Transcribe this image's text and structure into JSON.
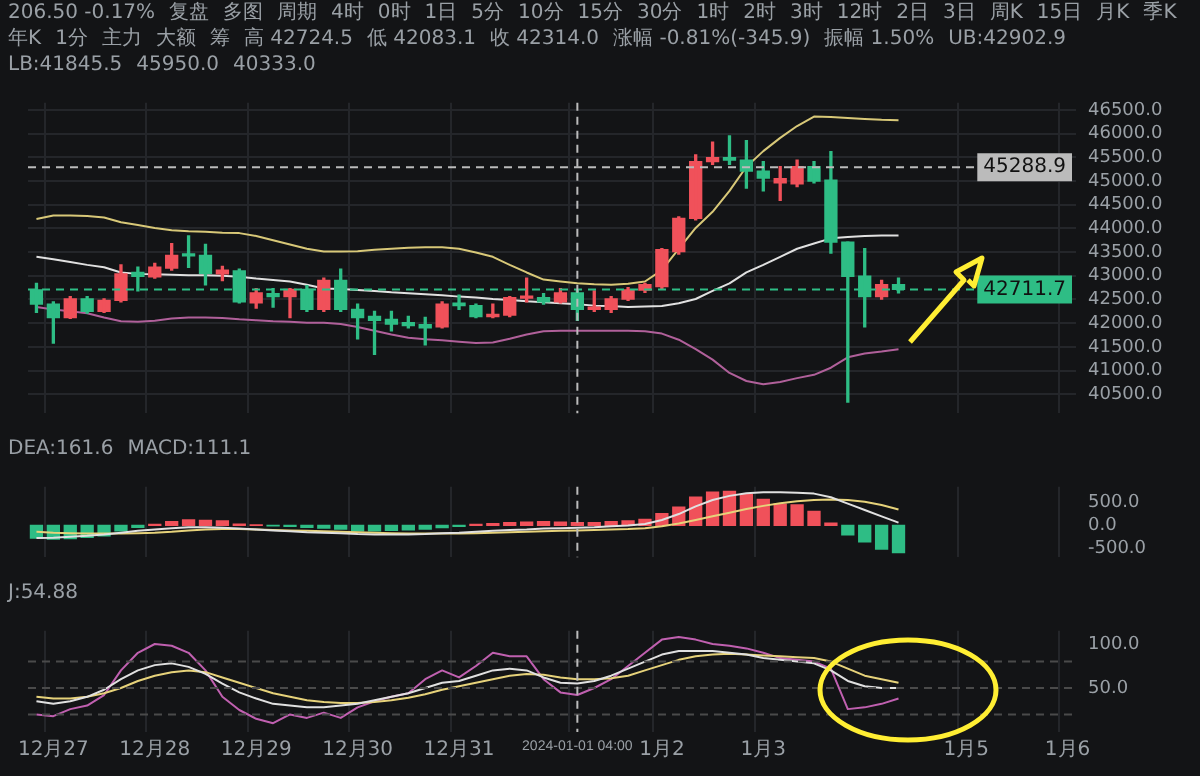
{
  "chart_data": [
    {
      "type": "candlestick",
      "categories": [
        null,
        null,
        null,
        null,
        null,
        null,
        null,
        null,
        null,
        null,
        null,
        null,
        null,
        null,
        null,
        null,
        null,
        null,
        null,
        null,
        null,
        null,
        null,
        null,
        null,
        null,
        null,
        null,
        null,
        null,
        null,
        null,
        null,
        null,
        null,
        null,
        null,
        null,
        null,
        null,
        null,
        null,
        null,
        null,
        null,
        null,
        null,
        null,
        null,
        null,
        null,
        null,
        null,
        null,
        null,
        null,
        null,
        null,
        null,
        null,
        null,
        null
      ],
      "ohlc": [
        [
          42700,
          42840,
          42230,
          42400
        ],
        [
          42400,
          42450,
          41580,
          42120
        ],
        [
          42120,
          42560,
          42100,
          42510
        ],
        [
          42510,
          42560,
          42210,
          42250
        ],
        [
          42250,
          42510,
          42230,
          42480
        ],
        [
          42480,
          43230,
          42450,
          43040
        ],
        [
          43070,
          43180,
          42680,
          42990
        ],
        [
          42980,
          43260,
          42950,
          43180
        ],
        [
          43160,
          43680,
          43120,
          43430
        ],
        [
          43450,
          43840,
          43180,
          43420
        ],
        [
          43430,
          43660,
          42810,
          43050
        ],
        [
          43040,
          43200,
          42900,
          43120
        ],
        [
          43100,
          43140,
          42430,
          42450
        ],
        [
          42430,
          42730,
          42320,
          42640
        ],
        [
          42620,
          42730,
          42340,
          42560
        ],
        [
          42560,
          42730,
          42120,
          42710
        ],
        [
          42710,
          42790,
          42250,
          42290
        ],
        [
          42290,
          42950,
          42250,
          42900
        ],
        [
          42900,
          43140,
          42250,
          42290
        ],
        [
          42290,
          42400,
          41670,
          42120
        ],
        [
          42140,
          42250,
          41340,
          42060
        ],
        [
          42080,
          42250,
          41840,
          41980
        ],
        [
          42010,
          42140,
          41900,
          41950
        ],
        [
          41970,
          42120,
          41540,
          41900
        ],
        [
          41920,
          42450,
          41900,
          42400
        ],
        [
          42420,
          42590,
          42290,
          42370
        ],
        [
          42370,
          42400,
          42120,
          42140
        ],
        [
          42140,
          42400,
          42120,
          42170
        ],
        [
          42170,
          42560,
          42140,
          42540
        ],
        [
          42530,
          42950,
          42450,
          42560
        ],
        [
          42540,
          42620,
          42400,
          42450
        ],
        [
          42450,
          42730,
          42430,
          42640
        ],
        [
          42640,
          42700,
          42060,
          42290
        ],
        [
          42290,
          42680,
          42250,
          42340
        ],
        [
          42290,
          42560,
          42230,
          42510
        ],
        [
          42510,
          42750,
          42480,
          42700
        ],
        [
          42700,
          42840,
          42650,
          42810
        ],
        [
          42770,
          43570,
          42730,
          43550
        ],
        [
          43510,
          44240,
          43460,
          44210
        ],
        [
          44210,
          45550,
          44180,
          45410
        ],
        [
          45410,
          45820,
          45350,
          45490
        ],
        [
          45490,
          45950,
          45350,
          45440
        ],
        [
          45440,
          45850,
          44850,
          45210
        ],
        [
          45210,
          45410,
          44790,
          45060
        ],
        [
          44960,
          45300,
          44590,
          45050
        ],
        [
          44940,
          45440,
          44880,
          45300
        ],
        [
          45300,
          45410,
          44960,
          45000
        ],
        [
          45020,
          45620,
          43480,
          43710
        ],
        [
          43710,
          43710,
          40333,
          42990
        ],
        [
          42990,
          43570,
          41920,
          42560
        ],
        [
          42560,
          42900,
          42510,
          42810
        ],
        [
          42810,
          42950,
          42640,
          42711.7
        ],
        null,
        null,
        null,
        null,
        null,
        null,
        null,
        null,
        null,
        null
      ],
      "colors": [
        "#2ebd85",
        "#2ebd85",
        "#f0515a",
        "#2ebd85",
        "#f0515a",
        "#f0515a",
        "#2ebd85",
        "#f0515a",
        "#f0515a",
        "#2ebd85",
        "#2ebd85",
        "#f0515a",
        "#2ebd85",
        "#f0515a",
        "#2ebd85",
        "#f0515a",
        "#2ebd85",
        "#f0515a",
        "#2ebd85",
        "#2ebd85",
        "#2ebd85",
        "#2ebd85",
        "#2ebd85",
        "#2ebd85",
        "#f0515a",
        "#2ebd85",
        "#2ebd85",
        "#f0515a",
        "#f0515a",
        "#f0515a",
        "#2ebd85",
        "#f0515a",
        "#2ebd85",
        "#f0515a",
        "#f0515a",
        "#f0515a",
        "#f0515a",
        "#f0515a",
        "#f0515a",
        "#f0515a",
        "#f0515a",
        "#2ebd85",
        "#2ebd85",
        "#2ebd85",
        "#f0515a",
        "#f0515a",
        "#2ebd85",
        "#2ebd85",
        "#2ebd85",
        "#2ebd85",
        "#f0515a",
        "#2ebd85",
        null,
        null,
        null,
        null,
        null,
        null,
        null,
        null,
        null,
        null
      ],
      "series": [
        {
          "type": "line",
          "color": "#d8c878",
          "values": [
            44200,
            44270,
            44270,
            44260,
            44230,
            44130,
            44070,
            44010,
            43960,
            43940,
            43930,
            43910,
            43900,
            43840,
            43750,
            43660,
            43570,
            43510,
            43510,
            43520,
            43550,
            43570,
            43590,
            43600,
            43600,
            43570,
            43490,
            43400,
            43230,
            43070,
            42920,
            42880,
            42840,
            42820,
            42810,
            42830,
            42880,
            43120,
            43570,
            44010,
            44350,
            44790,
            45300,
            45630,
            45910,
            46160,
            46360,
            46350,
            46330,
            46310,
            46290,
            46280,
            null,
            null,
            null,
            null,
            null,
            null,
            null,
            null,
            null,
            null
          ]
        },
        {
          "type": "line",
          "color": "#e0e0e0",
          "values": [
            43400,
            43350,
            43290,
            43230,
            43180,
            43070,
            43040,
            43030,
            43020,
            43010,
            43010,
            43000,
            42980,
            42940,
            42910,
            42880,
            42810,
            42730,
            42720,
            42700,
            42680,
            42650,
            42630,
            42610,
            42590,
            42560,
            42540,
            42510,
            42490,
            42460,
            42440,
            42420,
            42400,
            42370,
            42360,
            42340,
            42350,
            42360,
            42420,
            42510,
            42680,
            42840,
            43070,
            43230,
            43400,
            43570,
            43680,
            43790,
            43820,
            43840,
            43850,
            43850,
            null,
            null,
            null,
            null,
            null,
            null,
            null,
            null,
            null,
            null
          ]
        },
        {
          "type": "line",
          "color": "#b0609a",
          "values": [
            42340,
            42290,
            42250,
            42210,
            42120,
            42040,
            42030,
            42050,
            42100,
            42120,
            42120,
            42110,
            42080,
            42060,
            42040,
            42030,
            42010,
            42010,
            41980,
            41920,
            41840,
            41760,
            41690,
            41660,
            41640,
            41610,
            41580,
            41590,
            41670,
            41760,
            41830,
            41840,
            41840,
            41840,
            41840,
            41840,
            41830,
            41780,
            41650,
            41450,
            41230,
            40950,
            40780,
            40710,
            40760,
            40840,
            40910,
            41060,
            41280,
            41360,
            41400,
            41450,
            null,
            null,
            null,
            null,
            null,
            null,
            null,
            null,
            null,
            null
          ]
        }
      ],
      "ylim": [
        40100,
        46650
      ],
      "yticks": [
        {
          "value": 40500,
          "label": "40500.0"
        },
        {
          "value": 41000,
          "label": "41000.0"
        },
        {
          "value": 41500,
          "label": "41500.0"
        },
        {
          "value": 42000,
          "label": "42000.0"
        },
        {
          "value": 42500,
          "label": "42500.0"
        },
        {
          "value": 43000,
          "label": "43000.0"
        },
        {
          "value": 43500,
          "label": "43500.0"
        },
        {
          "value": 44000,
          "label": "44000.0"
        },
        {
          "value": 44500,
          "label": "44500.0"
        },
        {
          "value": 45000,
          "label": "45000.0"
        },
        {
          "value": 45500,
          "label": "45500.0"
        },
        {
          "value": 46000,
          "label": "46000.0"
        },
        {
          "value": 46500,
          "label": "46500.0"
        }
      ],
      "grid": true,
      "tick_labels": "y",
      "ref_lines": [
        {
          "axis": "y",
          "value": 45288.9,
          "label": "45288.9",
          "color": "#bbbbbb",
          "line_style": "dashed"
        },
        {
          "axis": "y",
          "value": 42711.7,
          "label": "42711.7",
          "color": "#2ebd85",
          "line_style": "dashed"
        }
      ],
      "annotations": [
        "206.50 -0.17%",
        "复盘",
        "多图",
        "周期",
        "4时",
        "0时",
        "1日",
        "5分",
        "10分",
        "15分",
        "30分",
        "1时",
        "2时",
        "3时",
        "12时",
        "2日",
        "3日",
        "周K",
        "15日",
        "月K",
        "季K",
        "年K",
        "1分",
        "主力",
        "大额",
        "筹",
        "高 42724.5",
        "低 42083.1",
        "收 42314.0",
        "涨幅 -0.81%(-345.9)",
        "振幅 1.50%",
        "UB:42902.9",
        "LB:41845.5",
        "45950.0",
        "40333.0"
      ]
    },
    {
      "type": "bar",
      "categories": [
        null,
        null,
        null,
        null,
        null,
        null,
        null,
        null,
        null,
        null,
        null,
        null,
        null,
        null,
        null,
        null,
        null,
        null,
        null,
        null,
        null,
        null,
        null,
        null,
        null,
        null,
        null,
        null,
        null,
        null,
        null,
        null,
        null,
        null,
        null,
        null,
        null,
        null,
        null,
        null,
        null,
        null,
        null,
        null,
        null,
        null,
        null,
        null,
        null,
        null,
        null,
        null,
        null,
        null,
        null,
        null,
        null,
        null,
        null,
        null,
        null,
        null
      ],
      "series": [
        {
          "type": "bar",
          "values": [
            -280,
            -300,
            -290,
            -260,
            -230,
            -120,
            -40,
            20,
            80,
            120,
            110,
            100,
            30,
            10,
            -10,
            -20,
            -40,
            -60,
            -80,
            -120,
            -120,
            -110,
            -100,
            -80,
            -50,
            -20,
            20,
            40,
            60,
            70,
            80,
            70,
            60,
            60,
            80,
            100,
            130,
            260,
            400,
            620,
            730,
            750,
            680,
            570,
            470,
            450,
            310,
            50,
            -210,
            -360,
            -520,
            -600,
            null,
            null,
            null,
            null,
            null,
            null,
            null,
            null,
            null,
            null
          ],
          "colors": [
            "#2ebd85",
            "#2ebd85",
            "#2ebd85",
            "#2ebd85",
            "#2ebd85",
            "#2ebd85",
            "#2ebd85",
            "#f0515a",
            "#f0515a",
            "#f0515a",
            "#f0515a",
            "#f0515a",
            "#f0515a",
            "#f0515a",
            "#2ebd85",
            "#2ebd85",
            "#2ebd85",
            "#2ebd85",
            "#2ebd85",
            "#2ebd85",
            "#2ebd85",
            "#2ebd85",
            "#2ebd85",
            "#2ebd85",
            "#2ebd85",
            "#2ebd85",
            "#f0515a",
            "#f0515a",
            "#f0515a",
            "#f0515a",
            "#f0515a",
            "#f0515a",
            "#f0515a",
            "#f0515a",
            "#f0515a",
            "#f0515a",
            "#f0515a",
            "#f0515a",
            "#f0515a",
            "#f0515a",
            "#f0515a",
            "#f0515a",
            "#f0515a",
            "#f0515a",
            "#f0515a",
            "#f0515a",
            "#f0515a",
            "#f0515a",
            "#2ebd85",
            "#2ebd85",
            "#2ebd85",
            "#2ebd85",
            null,
            null,
            null,
            null,
            null,
            null,
            null,
            null,
            null,
            null
          ]
        },
        {
          "type": "line",
          "color": "#e0e0e0",
          "values": [
            -280,
            -270,
            -250,
            -230,
            -200,
            -160,
            -120,
            -90,
            -60,
            -40,
            -40,
            -50,
            -70,
            -90,
            -110,
            -130,
            -150,
            -160,
            -170,
            -190,
            -200,
            -200,
            -200,
            -190,
            -170,
            -160,
            -140,
            -120,
            -100,
            -90,
            -70,
            -60,
            -50,
            -40,
            -20,
            0,
            30,
            120,
            250,
            420,
            560,
            650,
            710,
            730,
            730,
            720,
            700,
            620,
            480,
            340,
            200,
            60,
            null,
            null,
            null,
            null,
            null,
            null,
            null,
            null,
            null,
            null
          ]
        },
        {
          "type": "line",
          "color": "#e6d27a",
          "values": [
            -140,
            -160,
            -170,
            -180,
            -180,
            -180,
            -170,
            -160,
            -140,
            -110,
            -90,
            -80,
            -80,
            -90,
            -100,
            -110,
            -120,
            -130,
            -140,
            -150,
            -160,
            -170,
            -180,
            -180,
            -180,
            -180,
            -170,
            -160,
            -150,
            -140,
            -130,
            -120,
            -110,
            -100,
            -90,
            -80,
            -60,
            -20,
            40,
            120,
            200,
            280,
            360,
            430,
            490,
            530,
            560,
            570,
            560,
            520,
            450,
            350,
            null,
            null,
            null,
            null,
            null,
            null,
            null,
            null,
            null,
            null
          ]
        }
      ],
      "ylim": [
        -700,
        850
      ],
      "yticks": [
        {
          "value": -500,
          "label": "-500.0"
        },
        {
          "value": 0,
          "label": "0.0"
        },
        {
          "value": 500,
          "label": "500.0"
        }
      ],
      "grid": "x",
      "tick_labels": "y",
      "annotations": [
        "DEA:161.6",
        "MACD:111.1"
      ]
    },
    {
      "type": "line",
      "categories": [
        null,
        "12月27",
        null,
        null,
        null,
        null,
        null,
        "12月28",
        null,
        null,
        null,
        null,
        null,
        "12月29",
        null,
        null,
        null,
        null,
        null,
        "12月30",
        null,
        null,
        null,
        null,
        null,
        "12月31",
        null,
        null,
        null,
        null,
        null,
        null,
        "2024-01-01 04:00",
        null,
        null,
        null,
        null,
        "1月2",
        null,
        null,
        null,
        null,
        null,
        "1月3",
        null,
        null,
        null,
        null,
        null,
        null,
        null,
        null,
        null,
        null,
        null,
        "1月5",
        null,
        null,
        null,
        null,
        null,
        "1月6"
      ],
      "series": [
        {
          "type": "line",
          "color": "#e0e0e0",
          "values": [
            35,
            32,
            35,
            40,
            48,
            60,
            70,
            76,
            78,
            74,
            66,
            55,
            45,
            38,
            32,
            30,
            28,
            28,
            30,
            32,
            36,
            40,
            44,
            50,
            56,
            58,
            64,
            70,
            72,
            70,
            62,
            56,
            55,
            58,
            64,
            72,
            80,
            88,
            92,
            92,
            92,
            90,
            88,
            84,
            82,
            80,
            78,
            70,
            58,
            52,
            50,
            50,
            null,
            null,
            null,
            null,
            null,
            null,
            null,
            null,
            null,
            null
          ]
        },
        {
          "type": "line",
          "color": "#e6d27a",
          "values": [
            40,
            38,
            38,
            40,
            44,
            50,
            58,
            64,
            68,
            70,
            68,
            62,
            56,
            50,
            44,
            40,
            36,
            34,
            33,
            33,
            34,
            36,
            39,
            43,
            48,
            52,
            56,
            60,
            64,
            66,
            65,
            62,
            60,
            60,
            61,
            64,
            70,
            76,
            82,
            86,
            88,
            89,
            88,
            87,
            86,
            85,
            84,
            80,
            72,
            64,
            60,
            56,
            null,
            null,
            null,
            null,
            null,
            null,
            null,
            null,
            null,
            null
          ]
        },
        {
          "type": "line",
          "color": "#c060b0",
          "values": [
            20,
            18,
            26,
            30,
            42,
            70,
            90,
            100,
            98,
            90,
            70,
            40,
            25,
            15,
            10,
            20,
            16,
            22,
            16,
            28,
            35,
            40,
            44,
            60,
            70,
            62,
            75,
            90,
            86,
            86,
            60,
            45,
            42,
            50,
            60,
            75,
            90,
            105,
            108,
            105,
            100,
            98,
            95,
            90,
            84,
            82,
            80,
            72,
            26,
            28,
            32,
            38,
            null,
            null,
            null,
            null,
            null,
            null,
            null,
            null,
            null,
            null
          ]
        }
      ],
      "ylim": [
        0,
        115
      ],
      "yticks": [
        {
          "value": 50,
          "label": "50.0"
        },
        {
          "value": 100,
          "label": "100.0"
        }
      ],
      "grid": "x",
      "ref_lines": [
        {
          "axis": "y",
          "value": 80,
          "color": "#4a4a4a",
          "line_style": "dashed"
        },
        {
          "axis": "y",
          "value": 50,
          "color": "#4a4a4a",
          "line_style": "dashed"
        },
        {
          "axis": "y",
          "value": 20,
          "color": "#4a4a4a",
          "line_style": "dashed"
        },
        {
          "axis": "x",
          "value": "2024-01-01 04:00",
          "color": "#bbbbbb",
          "line_style": "dashed"
        }
      ],
      "annotations": [
        "J:54.88"
      ]
    }
  ]
}
